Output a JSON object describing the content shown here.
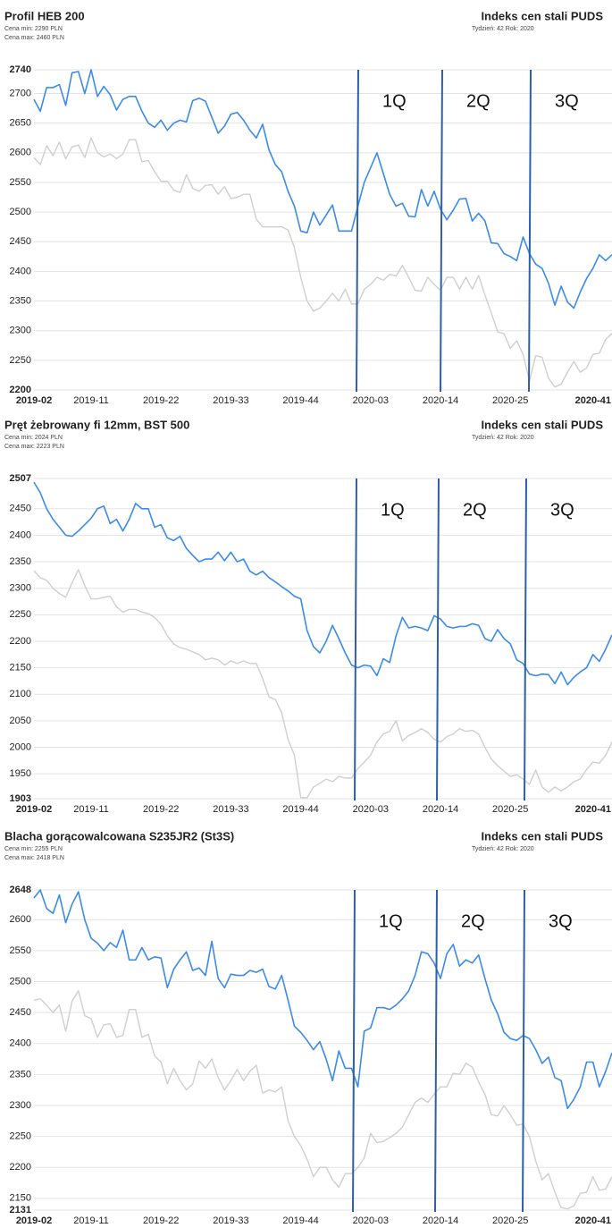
{
  "chart_data": [
    {
      "type": "line",
      "title": "Profil HEB 200",
      "info": [
        "Cena min: 2290 PLN",
        "Cena max: 2460 PLN"
      ],
      "source_title": "Indeks cen stali PUDS",
      "source_subtitle": "Tydzień: 42  Rok: 2020",
      "annotations": [
        "1Q",
        "2Q",
        "3Q"
      ],
      "categories": [
        "2019-02",
        null,
        null,
        null,
        null,
        null,
        null,
        null,
        null,
        "2019-11",
        null,
        null,
        null,
        null,
        null,
        null,
        null,
        null,
        null,
        null,
        "2019-22",
        null,
        null,
        null,
        null,
        null,
        null,
        null,
        null,
        null,
        null,
        "2019-33",
        null,
        null,
        null,
        null,
        null,
        null,
        null,
        null,
        null,
        null,
        "2019-44",
        null,
        null,
        null,
        null,
        null,
        null,
        null,
        null,
        null,
        null,
        "2020-03",
        null,
        null,
        null,
        null,
        null,
        null,
        null,
        null,
        null,
        null,
        "2020-14",
        null,
        null,
        null,
        null,
        null,
        null,
        null,
        null,
        null,
        null,
        "2020-25",
        null,
        null,
        null,
        null,
        null,
        null,
        null,
        null,
        null,
        null,
        null,
        null,
        null,
        null,
        null,
        "2020-41"
      ],
      "ylim": [
        2200,
        2740
      ],
      "yticks": [
        2200,
        2250,
        2300,
        2350,
        2400,
        2450,
        2500,
        2550,
        2600,
        2650,
        2700,
        2740
      ],
      "grid": true,
      "series": [
        {
          "color": "#3b8beb",
          "values": [
            2690,
            2670,
            2710,
            2710,
            2715,
            2680,
            2735,
            2737,
            2700,
            2740,
            2695,
            2712,
            2698,
            2672,
            2690,
            2695,
            2695,
            2670,
            2650,
            2643,
            2655,
            2638,
            2650,
            2655,
            2652,
            2688,
            2692,
            2687,
            2660,
            2633,
            2645,
            2665,
            2668,
            2655,
            2638,
            2625,
            2648,
            2605,
            2580,
            2568,
            2535,
            2510,
            2468,
            2465,
            2500,
            2478,
            2495,
            2512,
            2468,
            2468,
            2468,
            2510,
            2550,
            2575,
            2600,
            2565,
            2530,
            2510,
            2515,
            2493,
            2492,
            2538,
            2510,
            2535,
            2505,
            2487,
            2503,
            2522,
            2523,
            2485,
            2498,
            2485,
            2448,
            2447,
            2430,
            2425,
            2418,
            2458,
            2430,
            2412,
            2405,
            2380,
            2343,
            2375,
            2348,
            2338,
            2365,
            2388,
            2405,
            2428,
            2418,
            2428
          ]
        },
        {
          "color": "#cfcfcf",
          "values": [
            2592,
            2580,
            2612,
            2595,
            2618,
            2590,
            2610,
            2613,
            2592,
            2625,
            2600,
            2593,
            2598,
            2590,
            2598,
            2622,
            2622,
            2585,
            2587,
            2568,
            2552,
            2552,
            2537,
            2533,
            2563,
            2540,
            2535,
            2545,
            2546,
            2530,
            2543,
            2523,
            2525,
            2530,
            2530,
            2488,
            2475,
            2475,
            2475,
            2475,
            2470,
            2440,
            2390,
            2350,
            2333,
            2338,
            2350,
            2363,
            2350,
            2370,
            2345,
            2345,
            2370,
            2378,
            2390,
            2385,
            2395,
            2392,
            2410,
            2390,
            2368,
            2367,
            2390,
            2378,
            2368,
            2390,
            2390,
            2370,
            2390,
            2370,
            2393,
            2360,
            2330,
            2298,
            2295,
            2270,
            2283,
            2260,
            2215,
            2258,
            2255,
            2220,
            2205,
            2210,
            2230,
            2248,
            2230,
            2237,
            2260,
            2262,
            2285,
            2295
          ]
        }
      ]
    },
    {
      "type": "line",
      "title": "Pręt żebrowany fi 12mm, BST 500",
      "info": [
        "Cena min: 2024 PLN",
        "Cena max: 2223 PLN"
      ],
      "source_title": "Indeks cen stali PUDS",
      "source_subtitle": "Tydzień: 42  Rok: 2020",
      "annotations": [
        "1Q",
        "2Q",
        "3Q"
      ],
      "categories": [
        "2019-02",
        null,
        null,
        null,
        null,
        null,
        null,
        null,
        null,
        "2019-11",
        null,
        null,
        null,
        null,
        null,
        null,
        null,
        null,
        null,
        null,
        "2019-22",
        null,
        null,
        null,
        null,
        null,
        null,
        null,
        null,
        null,
        null,
        "2019-33",
        null,
        null,
        null,
        null,
        null,
        null,
        null,
        null,
        null,
        null,
        "2019-44",
        null,
        null,
        null,
        null,
        null,
        null,
        null,
        null,
        null,
        null,
        "2020-03",
        null,
        null,
        null,
        null,
        null,
        null,
        null,
        null,
        null,
        null,
        "2020-14",
        null,
        null,
        null,
        null,
        null,
        null,
        null,
        null,
        null,
        null,
        "2020-25",
        null,
        null,
        null,
        null,
        null,
        null,
        null,
        null,
        null,
        null,
        null,
        null,
        null,
        null,
        null,
        "2020-41"
      ],
      "ylim": [
        1903,
        2507
      ],
      "yticks": [
        1903,
        1950,
        2000,
        2050,
        2100,
        2150,
        2200,
        2250,
        2300,
        2350,
        2400,
        2450,
        2507
      ],
      "grid": true,
      "series": [
        {
          "color": "#3b8beb",
          "values": [
            2500,
            2480,
            2450,
            2430,
            2415,
            2400,
            2398,
            2408,
            2420,
            2432,
            2450,
            2455,
            2422,
            2430,
            2408,
            2430,
            2460,
            2450,
            2450,
            2415,
            2420,
            2395,
            2390,
            2398,
            2375,
            2362,
            2350,
            2355,
            2355,
            2368,
            2352,
            2368,
            2350,
            2355,
            2332,
            2325,
            2332,
            2320,
            2312,
            2303,
            2295,
            2285,
            2280,
            2220,
            2190,
            2178,
            2200,
            2230,
            2205,
            2178,
            2155,
            2150,
            2155,
            2153,
            2135,
            2167,
            2160,
            2210,
            2245,
            2225,
            2228,
            2225,
            2220,
            2248,
            2242,
            2228,
            2225,
            2228,
            2228,
            2233,
            2230,
            2205,
            2200,
            2222,
            2205,
            2195,
            2165,
            2158,
            2138,
            2135,
            2138,
            2137,
            2120,
            2142,
            2118,
            2132,
            2142,
            2150,
            2175,
            2162,
            2185,
            2212
          ]
        },
        {
          "color": "#cfcfcf",
          "values": [
            2333,
            2320,
            2315,
            2300,
            2290,
            2283,
            2310,
            2335,
            2305,
            2280,
            2280,
            2283,
            2285,
            2265,
            2255,
            2260,
            2260,
            2255,
            2252,
            2245,
            2232,
            2210,
            2195,
            2188,
            2185,
            2180,
            2175,
            2165,
            2168,
            2165,
            2155,
            2163,
            2158,
            2163,
            2158,
            2158,
            2130,
            2095,
            2090,
            2065,
            2015,
            1985,
            1905,
            1905,
            1925,
            1932,
            1940,
            1935,
            1945,
            1942,
            1942,
            1960,
            1972,
            1985,
            2010,
            2025,
            2030,
            2050,
            2012,
            2022,
            2028,
            2035,
            2028,
            2015,
            2010,
            2020,
            2025,
            2035,
            2030,
            2032,
            2025,
            2000,
            1978,
            1965,
            1955,
            1945,
            1948,
            1940,
            1930,
            1957,
            1925,
            1915,
            1925,
            1918,
            1925,
            1935,
            1940,
            1958,
            1972,
            1970,
            1985,
            2010
          ]
        }
      ]
    },
    {
      "type": "line",
      "title": "Blacha gorącowalcowana S235JR2 (St3S)",
      "info": [
        "Cena min: 2255 PLN",
        "Cena max: 2418 PLN"
      ],
      "source_title": "Indeks cen stali PUDS",
      "source_subtitle": "Tydzień: 42  Rok: 2020",
      "annotations": [
        "1Q",
        "2Q",
        "3Q"
      ],
      "categories": [
        "2019-02",
        null,
        null,
        null,
        null,
        null,
        null,
        null,
        null,
        "2019-11",
        null,
        null,
        null,
        null,
        null,
        null,
        null,
        null,
        null,
        null,
        "2019-22",
        null,
        null,
        null,
        null,
        null,
        null,
        null,
        null,
        null,
        null,
        "2019-33",
        null,
        null,
        null,
        null,
        null,
        null,
        null,
        null,
        null,
        null,
        "2019-44",
        null,
        null,
        null,
        null,
        null,
        null,
        null,
        null,
        null,
        null,
        "2020-03",
        null,
        null,
        null,
        null,
        null,
        null,
        null,
        null,
        null,
        null,
        "2020-14",
        null,
        null,
        null,
        null,
        null,
        null,
        null,
        null,
        null,
        null,
        "2020-25",
        null,
        null,
        null,
        null,
        null,
        null,
        null,
        null,
        null,
        null,
        null,
        null,
        null,
        null,
        null,
        "2020-41"
      ],
      "ylim": [
        2131,
        2648
      ],
      "yticks": [
        2131,
        2150,
        2200,
        2250,
        2300,
        2350,
        2400,
        2450,
        2500,
        2550,
        2600,
        2648
      ],
      "grid": true,
      "series": [
        {
          "color": "#3b8beb",
          "values": [
            2635,
            2648,
            2618,
            2610,
            2640,
            2595,
            2625,
            2645,
            2600,
            2570,
            2562,
            2550,
            2563,
            2555,
            2583,
            2535,
            2535,
            2555,
            2535,
            2540,
            2538,
            2490,
            2520,
            2535,
            2548,
            2518,
            2522,
            2510,
            2565,
            2505,
            2490,
            2512,
            2510,
            2510,
            2518,
            2515,
            2520,
            2492,
            2488,
            2510,
            2470,
            2428,
            2418,
            2405,
            2390,
            2403,
            2375,
            2340,
            2388,
            2360,
            2360,
            2330,
            2420,
            2425,
            2458,
            2458,
            2455,
            2462,
            2472,
            2485,
            2510,
            2548,
            2545,
            2530,
            2505,
            2545,
            2560,
            2525,
            2535,
            2530,
            2543,
            2505,
            2470,
            2448,
            2418,
            2408,
            2405,
            2413,
            2408,
            2390,
            2368,
            2378,
            2345,
            2340,
            2295,
            2310,
            2330,
            2370,
            2370,
            2330,
            2355,
            2385
          ]
        },
        {
          "color": "#cfcfcf",
          "values": [
            2470,
            2472,
            2462,
            2450,
            2462,
            2420,
            2468,
            2485,
            2445,
            2440,
            2410,
            2430,
            2432,
            2410,
            2413,
            2455,
            2455,
            2410,
            2415,
            2380,
            2370,
            2335,
            2360,
            2340,
            2325,
            2335,
            2372,
            2360,
            2375,
            2345,
            2325,
            2340,
            2358,
            2340,
            2355,
            2365,
            2320,
            2325,
            2322,
            2330,
            2275,
            2250,
            2235,
            2213,
            2185,
            2200,
            2200,
            2180,
            2168,
            2190,
            2190,
            2200,
            2215,
            2255,
            2240,
            2242,
            2248,
            2255,
            2265,
            2285,
            2305,
            2312,
            2305,
            2318,
            2330,
            2330,
            2352,
            2350,
            2368,
            2362,
            2338,
            2318,
            2285,
            2283,
            2300,
            2285,
            2268,
            2270,
            2250,
            2210,
            2180,
            2190,
            2160,
            2135,
            2133,
            2138,
            2158,
            2160,
            2185,
            2163,
            2165,
            2185
          ]
        }
      ]
    }
  ]
}
